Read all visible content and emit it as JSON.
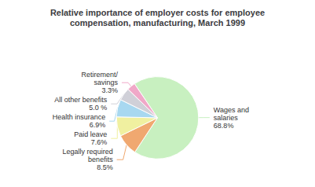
{
  "chart_data": {
    "type": "pie",
    "title": "Relative importance of employer costs for employee\ncompensation, manufacturing, March 1999",
    "categories": [
      "Wages and\nsalaries\n68.8%",
      "Legally required\nbenefits\n8.5%",
      "Paid leave\n7.6%",
      "Health insurance\n6.9%",
      "All other benefits\n5.0 %",
      "Retirement/\nsavings\n3.3%"
    ],
    "values": [
      68.8,
      8.5,
      7.6,
      6.9,
      5.0,
      3.3
    ],
    "colors": [
      "#c8f0c0",
      "#f0a870",
      "#f0f0a0",
      "#a8d8f0",
      "#d0d0d8",
      "#f0a8c8"
    ]
  }
}
